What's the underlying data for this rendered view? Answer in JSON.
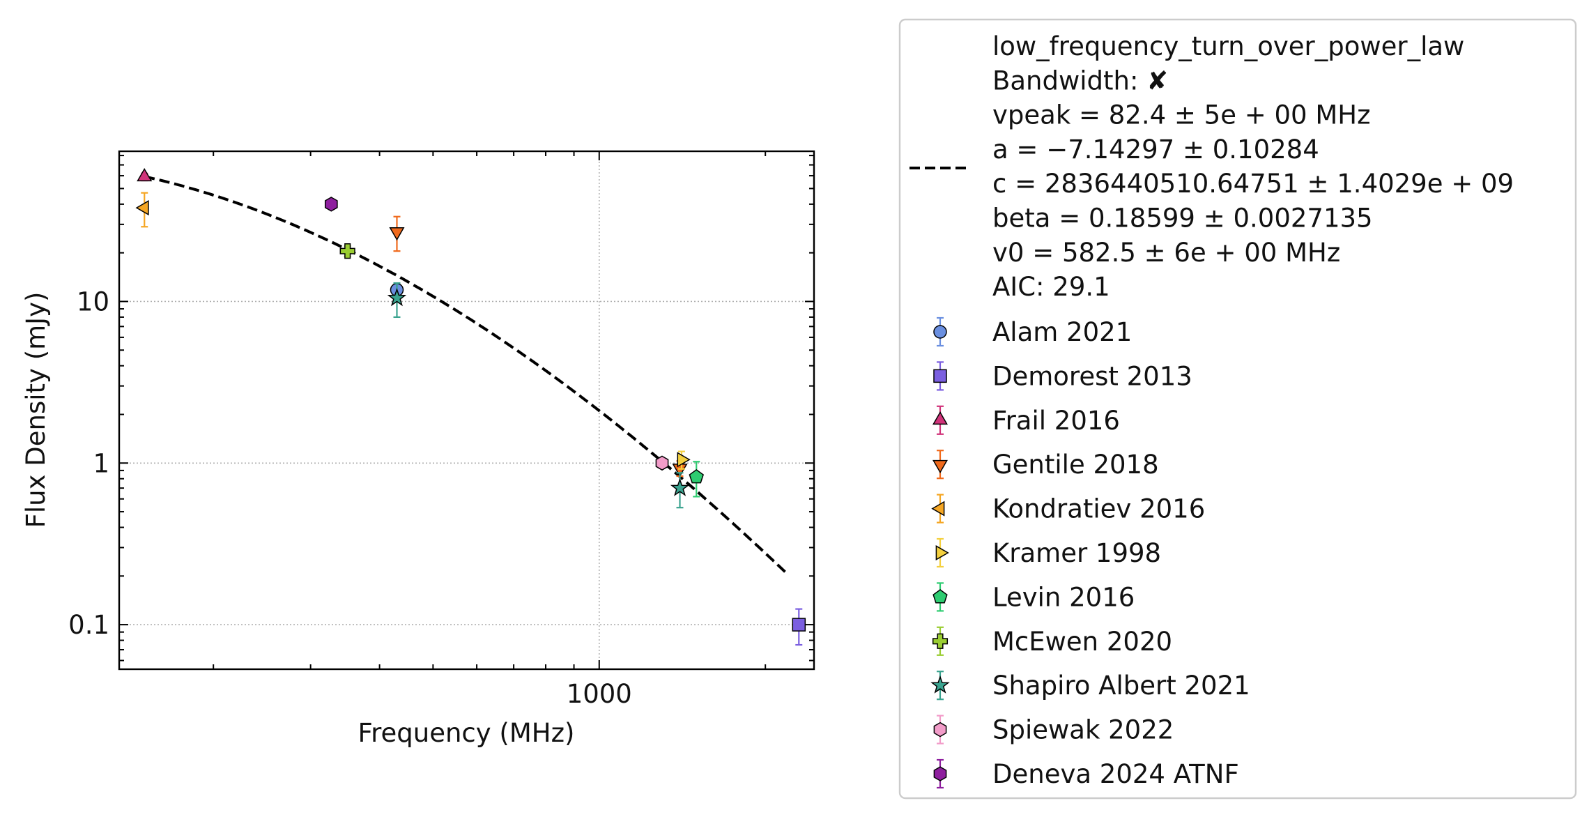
{
  "chart_data": {
    "type": "scatter",
    "xlabel": "Frequency (MHz)",
    "ylabel": "Flux Density (mJy)",
    "xscale": "log",
    "yscale": "log",
    "xlim": [
      135,
      2450
    ],
    "ylim": [
      0.053,
      85
    ],
    "x_ticks": [
      {
        "value": 1000,
        "label": "1000"
      }
    ],
    "y_ticks": [
      {
        "value": 0.1,
        "label": "0.1"
      },
      {
        "value": 1,
        "label": "1"
      },
      {
        "value": 10,
        "label": "10"
      }
    ],
    "grid": true,
    "legend_position": "outside-right",
    "fit": {
      "model": "low_frequency_turn_over_power_law",
      "style": "dashed",
      "color": "#000000",
      "x_range": [
        150,
        2200
      ],
      "vpeak": 82.4,
      "a": -7.14297,
      "c": 2836440510.64751,
      "beta": 0.18599,
      "v0": 582.5,
      "legend_lines": [
        "low_frequency_turn_over_power_law",
        "Bandwidth: ✘",
        "vpeak = 82.4 ± 5e + 00 MHz",
        "a = −7.14297 ± 0.10284",
        "c = 2836440510.64751 ± 1.4029e + 09",
        "beta = 0.18599 ± 0.0027135",
        "v0 = 582.5 ± 6e + 00 MHz",
        "AIC: 29.1"
      ]
    },
    "series": [
      {
        "name": "Alam 2021",
        "marker": "circle",
        "color": "#6a8fe0",
        "points": [
          {
            "x": 430,
            "y": 11.8,
            "yerr": [
              1.0,
              1.0
            ]
          }
        ]
      },
      {
        "name": "Demorest 2013",
        "marker": "square",
        "color": "#7b5fe0",
        "points": [
          {
            "x": 2300,
            "y": 0.1,
            "yerr": [
              0.025,
              0.025
            ]
          }
        ]
      },
      {
        "name": "Frail 2016",
        "marker": "triangle-up",
        "color": "#d1337a",
        "points": [
          {
            "x": 150,
            "y": 59,
            "yerr": [
              3,
              3
            ]
          }
        ]
      },
      {
        "name": "Gentile 2018",
        "marker": "triangle-down",
        "color": "#f06a1c",
        "points": [
          {
            "x": 430,
            "y": 27,
            "yerr": [
              6.5,
              6.5
            ]
          },
          {
            "x": 1400,
            "y": 0.93,
            "yerr": [
              0.1,
              0.1
            ]
          }
        ]
      },
      {
        "name": "Kondratiev 2016",
        "marker": "triangle-left",
        "color": "#f5a623",
        "points": [
          {
            "x": 150,
            "y": 38,
            "yerr": [
              9,
              9
            ]
          }
        ]
      },
      {
        "name": "Kramer 1998",
        "marker": "triangle-right",
        "color": "#f4d03f",
        "points": [
          {
            "x": 1410,
            "y": 1.05,
            "yerr": [
              0.13,
              0.13
            ]
          }
        ]
      },
      {
        "name": "Levin 2016",
        "marker": "pentagon",
        "color": "#2ecc71",
        "points": [
          {
            "x": 1500,
            "y": 0.82,
            "yerr": [
              0.2,
              0.2
            ]
          }
        ]
      },
      {
        "name": "McEwen 2020",
        "marker": "plus",
        "color": "#9acd32",
        "points": [
          {
            "x": 350,
            "y": 20.5,
            "yerr": [
              1.5,
              1.5
            ]
          }
        ]
      },
      {
        "name": "Shapiro Albert 2021",
        "marker": "star",
        "color": "#3aa38f",
        "points": [
          {
            "x": 430,
            "y": 10.5,
            "yerr": [
              2.5,
              2.5
            ]
          },
          {
            "x": 1400,
            "y": 0.7,
            "yerr": [
              0.17,
              0.17
            ]
          }
        ]
      },
      {
        "name": "Spiewak 2022",
        "marker": "hexagon",
        "color": "#f29cc9",
        "points": [
          {
            "x": 1300,
            "y": 1.0,
            "yerr": [
              0.05,
              0.05
            ]
          }
        ]
      },
      {
        "name": "Deneva 2024 ATNF",
        "marker": "hexagon",
        "color": "#8e1f9e",
        "points": [
          {
            "x": 327,
            "y": 40,
            "yerr": [
              1.5,
              1.5
            ]
          }
        ]
      }
    ]
  }
}
